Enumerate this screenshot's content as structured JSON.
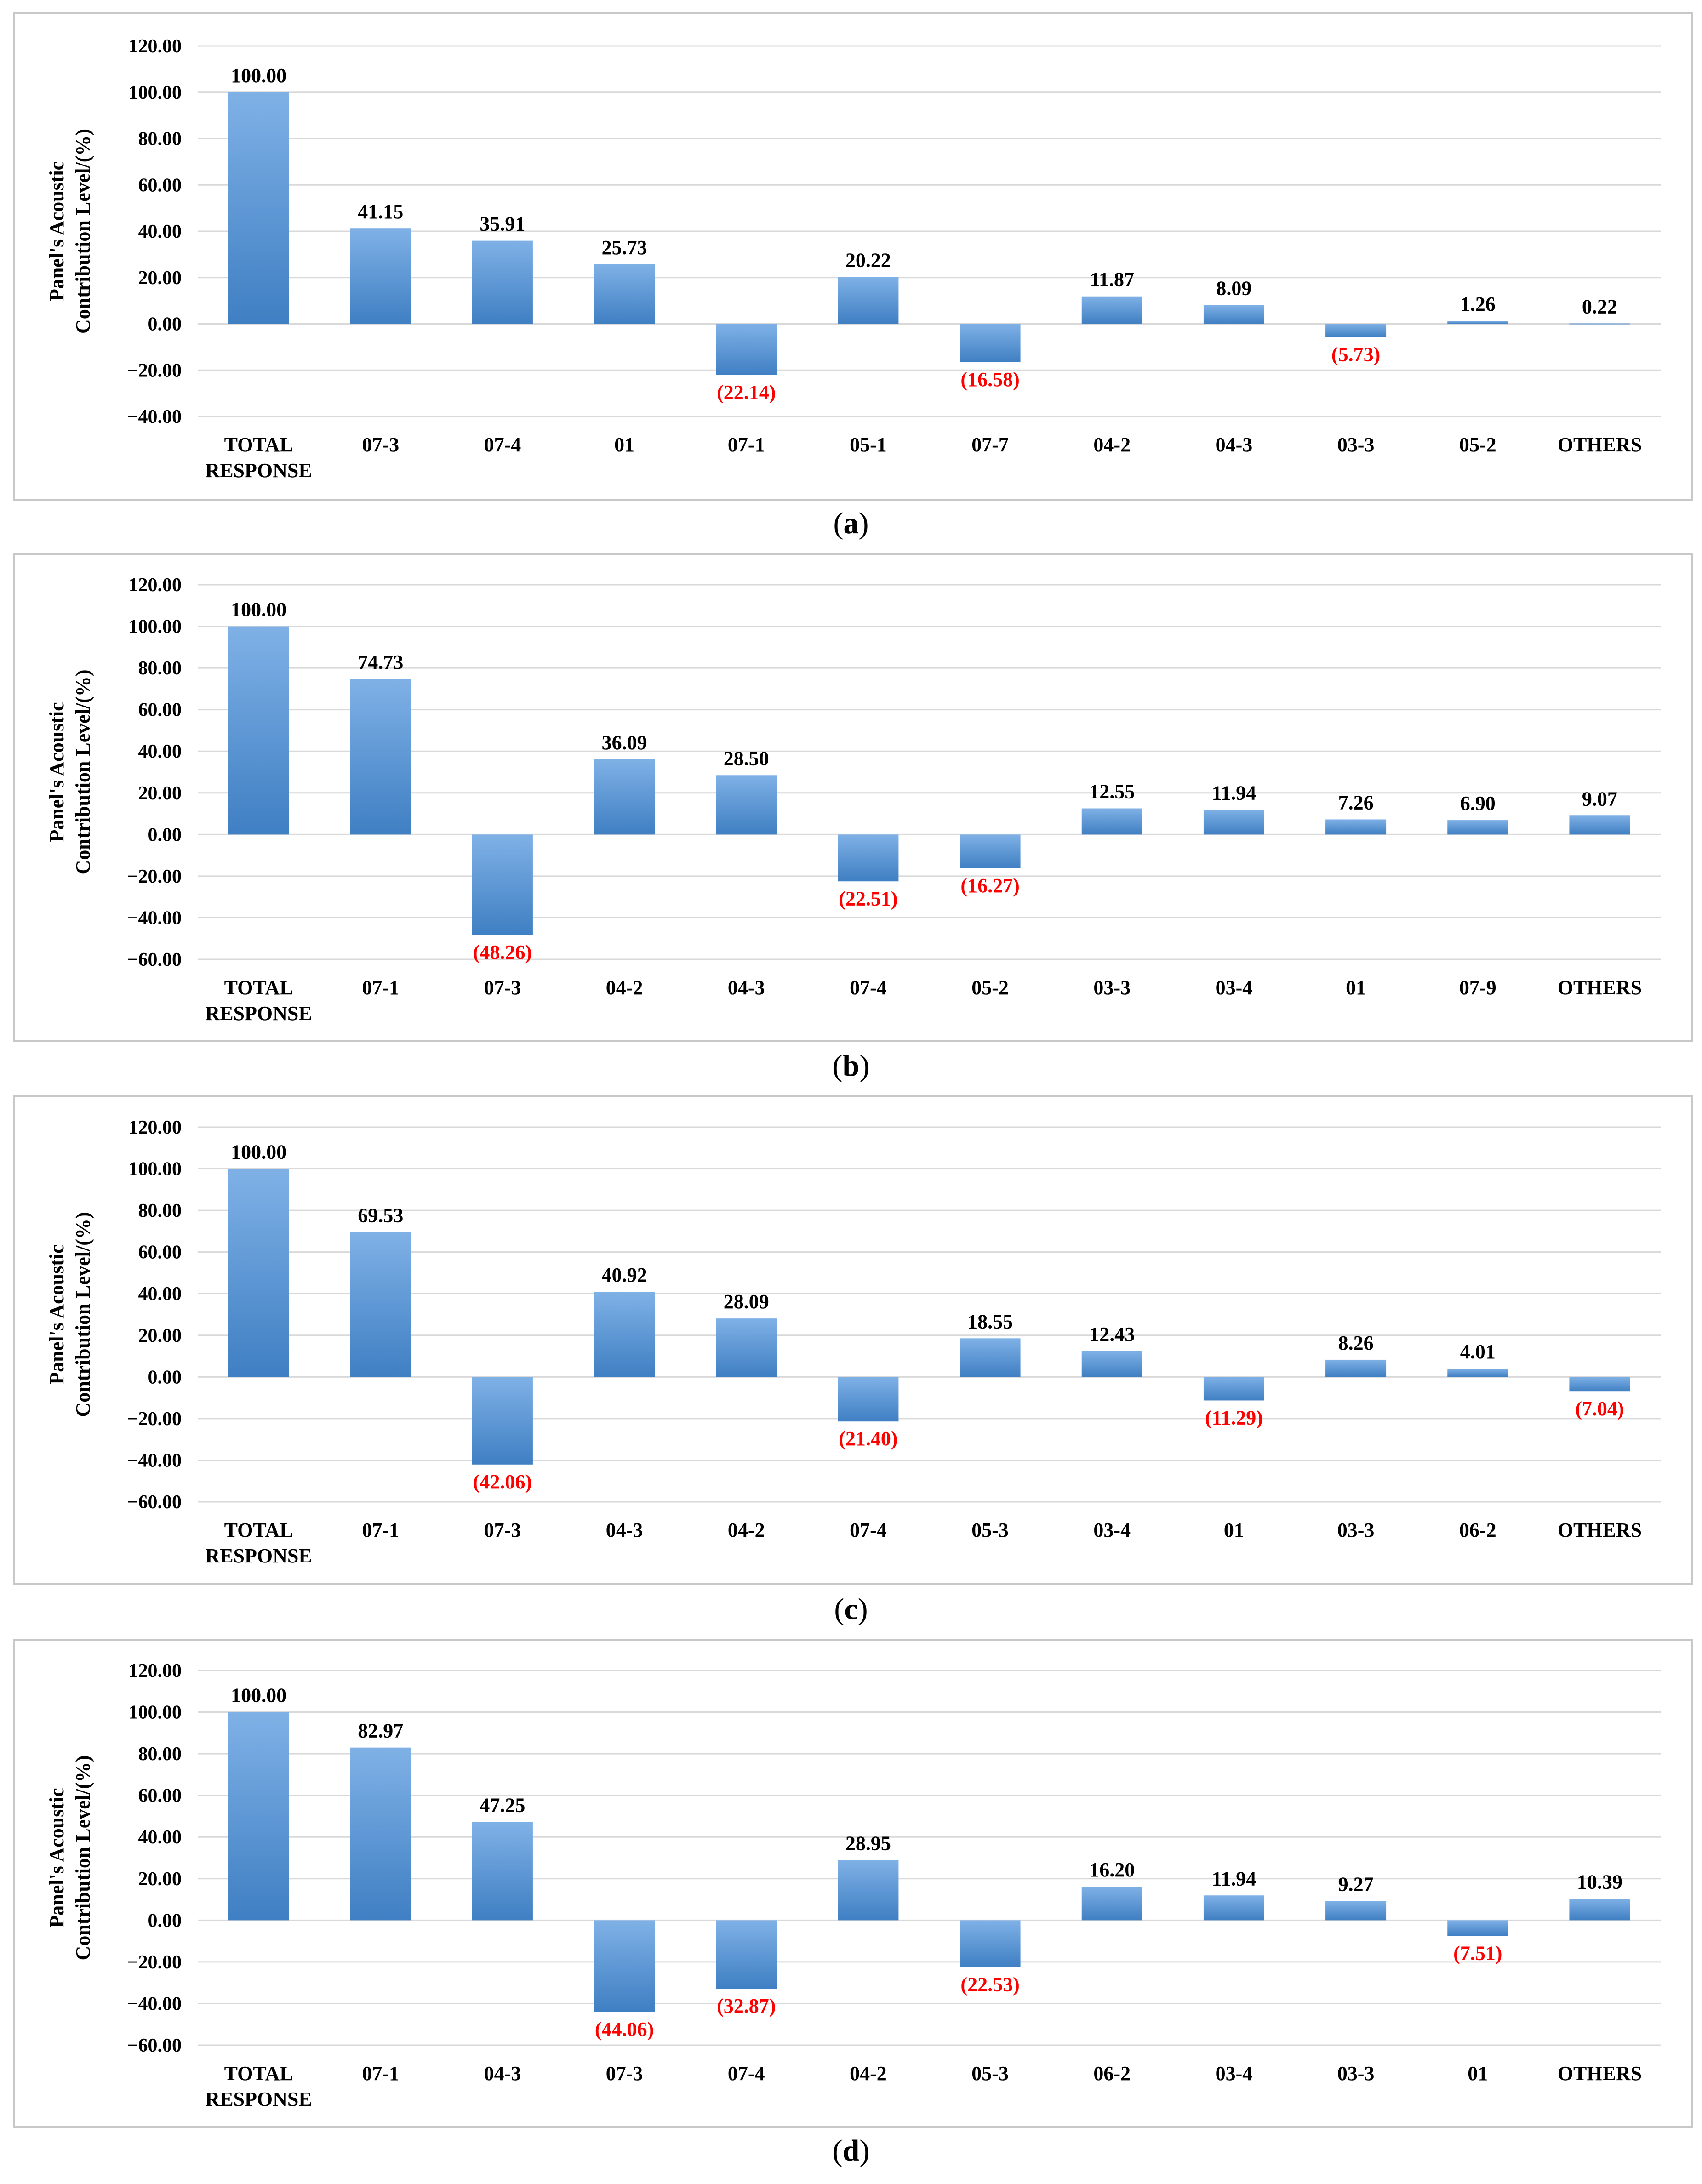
{
  "y_axis_title": [
    "Panel's Acoustic",
    "Contribution Level/(%)"
  ],
  "colors": {
    "bar_top": "#7fb1e6",
    "bar_bottom": "#3f7fc3",
    "negative_label": "#ff0000",
    "positive_label": "#000000",
    "gridline": "#d9d9d9",
    "frame": "#c8c8c8"
  },
  "chart_data": [
    {
      "type": "bar",
      "caption": "a",
      "categories": [
        "TOTAL RESPONSE",
        "07-3",
        "07-4",
        "01",
        "07-1",
        "05-1",
        "07-7",
        "04-2",
        "04-3",
        "03-3",
        "05-2",
        "OTHERS"
      ],
      "values": [
        100.0,
        41.15,
        35.91,
        25.73,
        -22.14,
        20.22,
        -16.58,
        11.87,
        8.09,
        -5.73,
        1.26,
        0.22
      ],
      "data_labels": [
        "100.00",
        "41.15",
        "35.91",
        "25.73",
        "(22.14)",
        "20.22",
        "(16.58)",
        "11.87",
        "8.09",
        "(5.73)",
        "1.26",
        "0.22"
      ],
      "yticks": [
        "120.00",
        "100.00",
        "80.00",
        "60.00",
        "40.00",
        "20.00",
        "0.00",
        "−20.00",
        "−40.00"
      ],
      "ylim": [
        -40,
        120
      ],
      "ylabel": "Panel's Acoustic Contribution Level/(%)"
    },
    {
      "type": "bar",
      "caption": "b",
      "categories": [
        "TOTAL RESPONSE",
        "07-1",
        "07-3",
        "04-2",
        "04-3",
        "07-4",
        "05-2",
        "03-3",
        "03-4",
        "01",
        "07-9",
        "OTHERS"
      ],
      "values": [
        100.0,
        74.73,
        -48.26,
        36.09,
        28.5,
        -22.51,
        -16.27,
        12.55,
        11.94,
        7.26,
        6.9,
        9.07
      ],
      "data_labels": [
        "100.00",
        "74.73",
        "(48.26)",
        "36.09",
        "28.50",
        "(22.51)",
        "(16.27)",
        "12.55",
        "11.94",
        "7.26",
        "6.90",
        "9.07"
      ],
      "yticks": [
        "120.00",
        "100.00",
        "80.00",
        "60.00",
        "40.00",
        "20.00",
        "0.00",
        "−20.00",
        "−40.00",
        "−60.00"
      ],
      "ylim": [
        -60,
        120
      ],
      "ylabel": "Panel's Acoustic Contribution Level/(%)"
    },
    {
      "type": "bar",
      "caption": "c",
      "categories": [
        "TOTAL RESPONSE",
        "07-1",
        "07-3",
        "04-3",
        "04-2",
        "07-4",
        "05-3",
        "03-4",
        "01",
        "03-3",
        "06-2",
        "OTHERS"
      ],
      "values": [
        100.0,
        69.53,
        -42.06,
        40.92,
        28.09,
        -21.4,
        18.55,
        12.43,
        -11.29,
        8.26,
        4.01,
        -7.04
      ],
      "data_labels": [
        "100.00",
        "69.53",
        "(42.06)",
        "40.92",
        "28.09",
        "(21.40)",
        "18.55",
        "12.43",
        "(11.29)",
        "8.26",
        "4.01",
        "(7.04)"
      ],
      "yticks": [
        "120.00",
        "100.00",
        "80.00",
        "60.00",
        "40.00",
        "20.00",
        "0.00",
        "−20.00",
        "−40.00",
        "−60.00"
      ],
      "ylim": [
        -60,
        120
      ],
      "ylabel": "Panel's Acoustic Contribution Level/(%)"
    },
    {
      "type": "bar",
      "caption": "d",
      "categories": [
        "TOTAL RESPONSE",
        "07-1",
        "04-3",
        "07-3",
        "07-4",
        "04-2",
        "05-3",
        "06-2",
        "03-4",
        "03-3",
        "01",
        "OTHERS"
      ],
      "values": [
        100.0,
        82.97,
        47.25,
        -44.06,
        -32.87,
        28.95,
        -22.53,
        16.2,
        11.94,
        9.27,
        -7.51,
        10.39
      ],
      "data_labels": [
        "100.00",
        "82.97",
        "47.25",
        "(44.06)",
        "(32.87)",
        "28.95",
        "(22.53)",
        "16.20",
        "11.94",
        "9.27",
        "(7.51)",
        "10.39"
      ],
      "yticks": [
        "120.00",
        "100.00",
        "80.00",
        "60.00",
        "40.00",
        "20.00",
        "0.00",
        "−20.00",
        "−40.00",
        "−60.00"
      ],
      "ylim": [
        -60,
        120
      ],
      "ylabel": "Panel's Acoustic Contribution Level/(%)"
    }
  ]
}
